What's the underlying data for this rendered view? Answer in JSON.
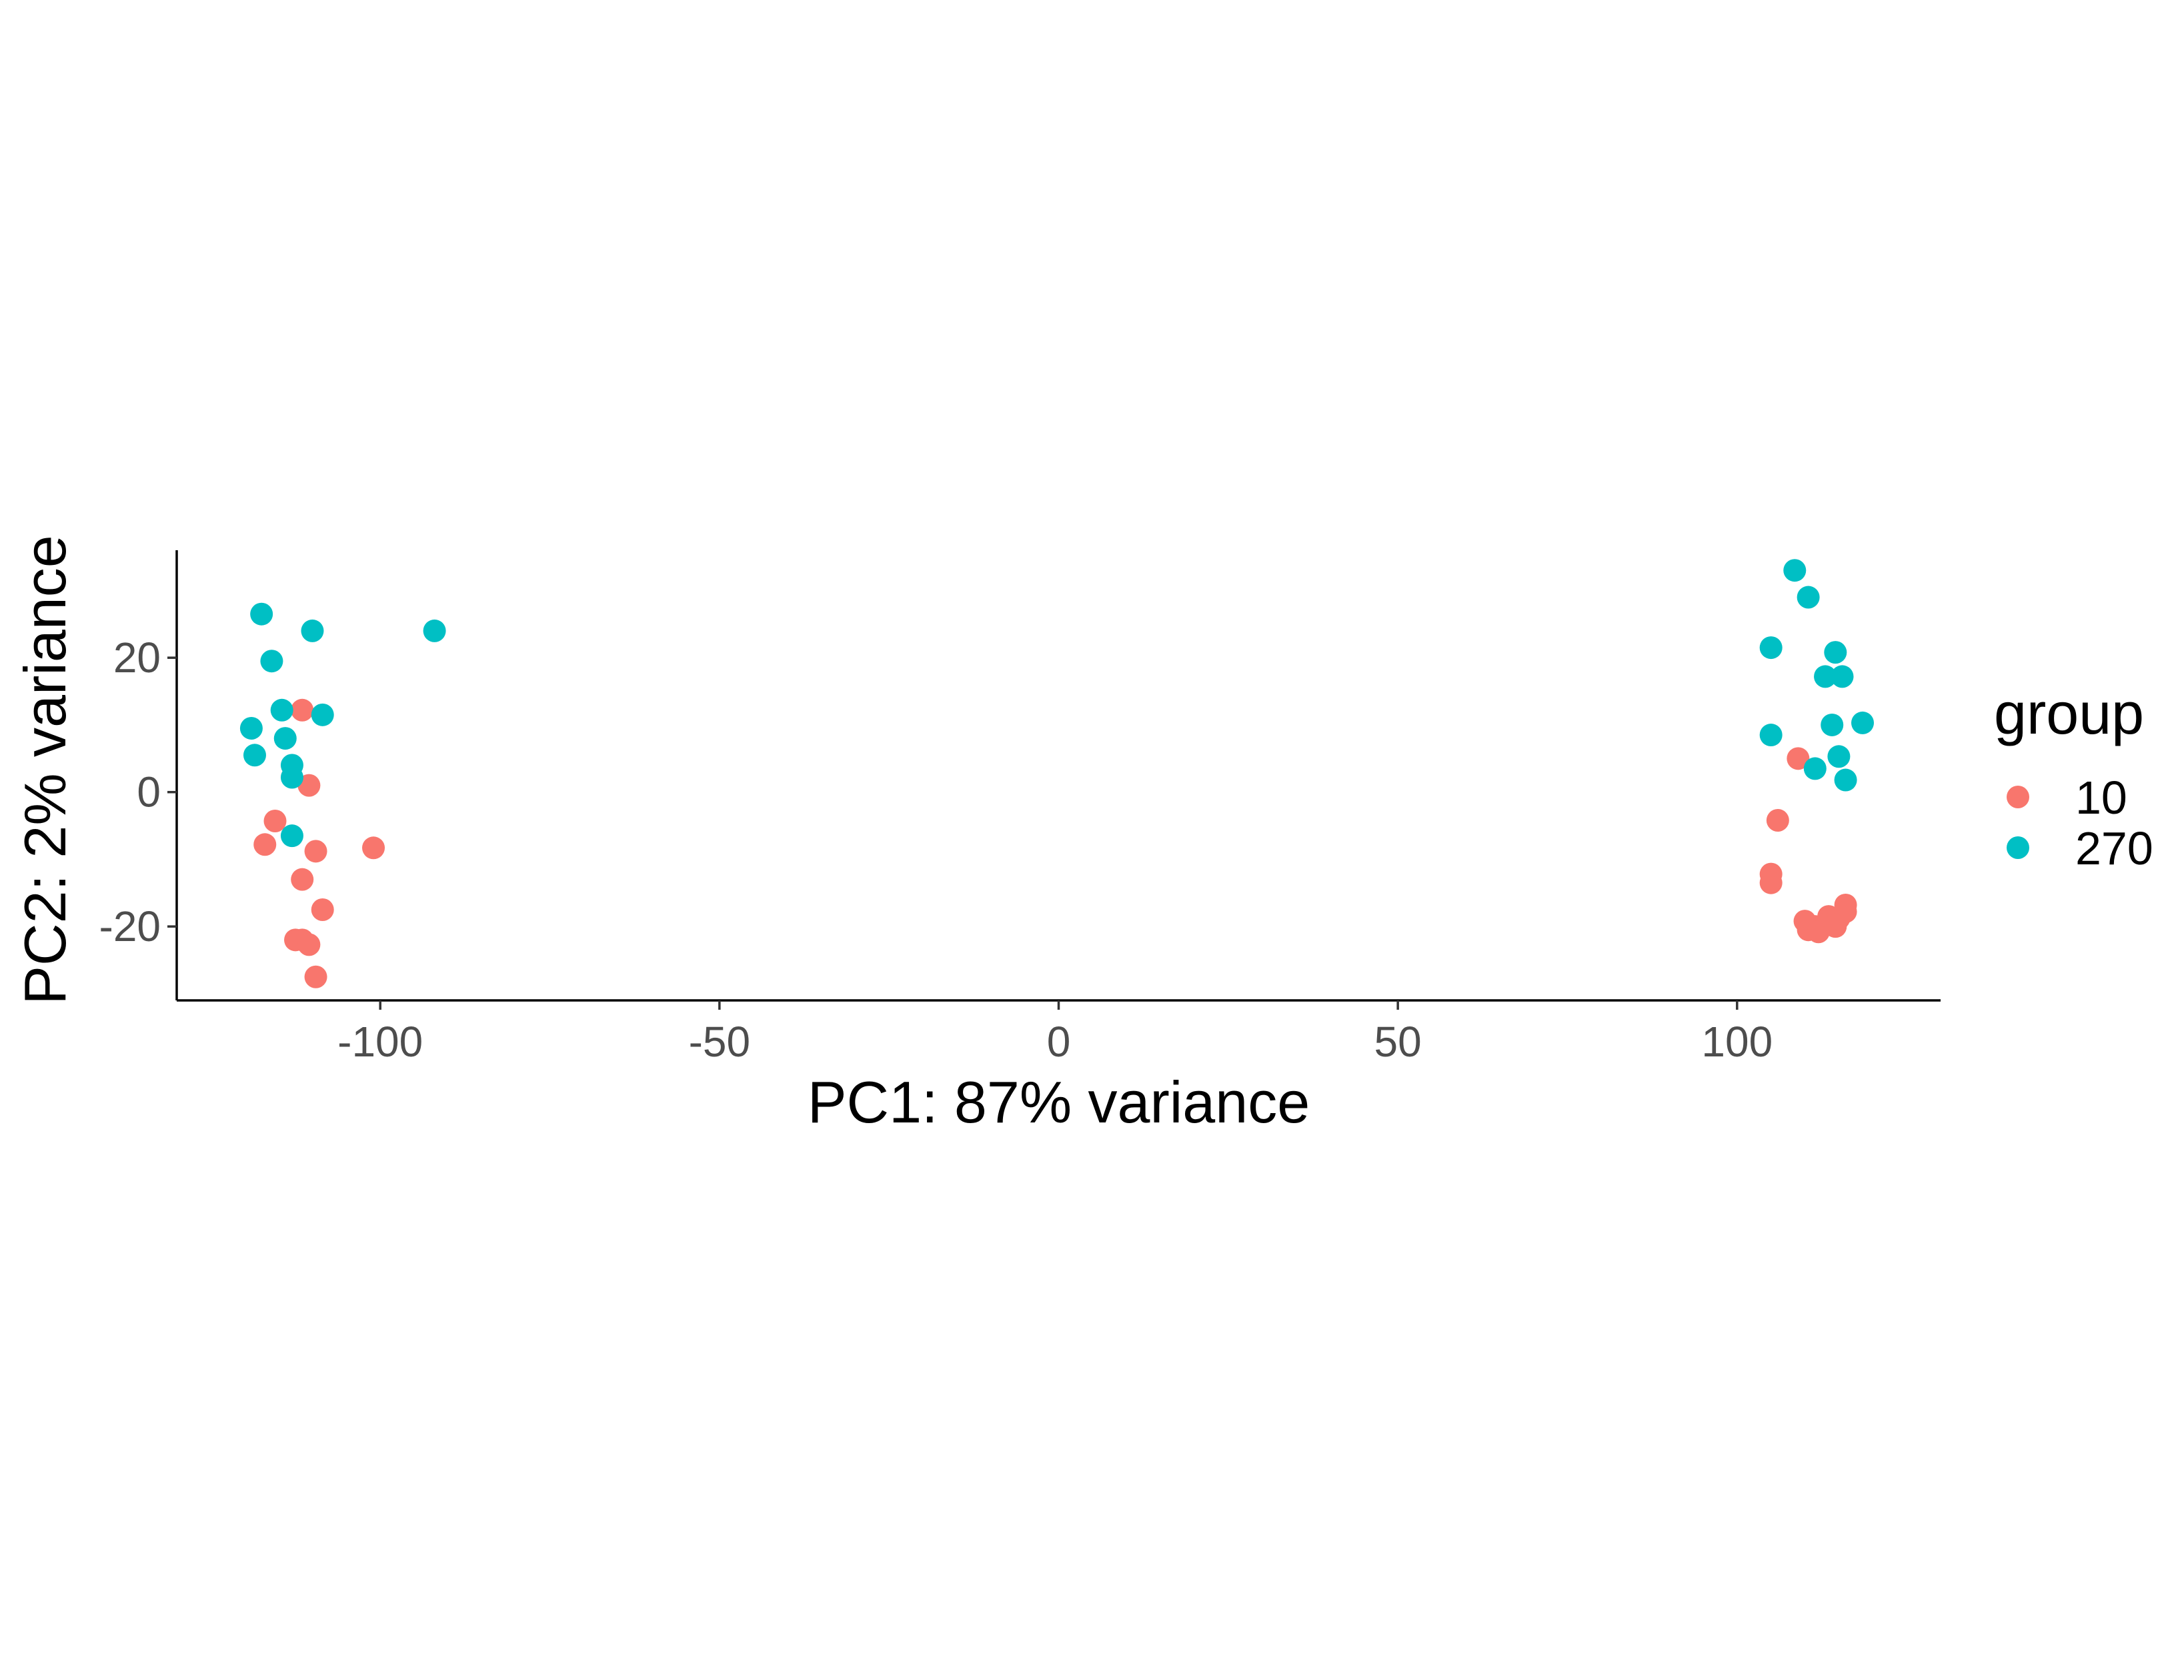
{
  "chart_data": {
    "type": "scatter",
    "xlabel": "PC1: 87% variance",
    "ylabel": "PC2: 2% variance",
    "xlim": [
      -130,
      130
    ],
    "ylim": [
      -31,
      36
    ],
    "grid": false,
    "x_ticks": [
      -100,
      -50,
      0,
      50,
      100
    ],
    "x_tick_labels": [
      "-100",
      "-50",
      "0",
      "50",
      "100"
    ],
    "y_ticks": [
      -20,
      0,
      20
    ],
    "y_tick_labels": [
      "-20",
      "0",
      "20"
    ],
    "legend": {
      "title": "group",
      "placement": "right",
      "entries": [
        {
          "label": "10",
          "color": "#F8766D"
        },
        {
          "label": "270",
          "color": "#00BFC4"
        }
      ]
    },
    "series": [
      {
        "name": "10",
        "color": "#F8766D",
        "points": [
          [
            -111.5,
            12.2
          ],
          [
            -110.5,
            1.0
          ],
          [
            -115.5,
            -4.3
          ],
          [
            -117.0,
            -7.8
          ],
          [
            -109.5,
            -8.8
          ],
          [
            -101.0,
            -8.3
          ],
          [
            -111.5,
            -13.0
          ],
          [
            -108.5,
            -17.5
          ],
          [
            -112.5,
            -22.0
          ],
          [
            -111.5,
            -22.0
          ],
          [
            -110.5,
            -22.7
          ],
          [
            -109.5,
            -27.5
          ],
          [
            109.0,
            5.0
          ],
          [
            106.0,
            -4.2
          ],
          [
            105.0,
            -12.2
          ],
          [
            105.0,
            -13.5
          ],
          [
            110.0,
            -19.2
          ],
          [
            110.5,
            -20.5
          ],
          [
            111.5,
            -20.0
          ],
          [
            112.0,
            -20.8
          ],
          [
            113.5,
            -18.5
          ],
          [
            114.5,
            -20.0
          ],
          [
            115.0,
            -18.8
          ],
          [
            116.0,
            -16.8
          ],
          [
            116.0,
            -17.8
          ]
        ]
      },
      {
        "name": "270",
        "color": "#00BFC4",
        "points": [
          [
            -117.5,
            26.5
          ],
          [
            -116.0,
            19.5
          ],
          [
            -110.0,
            24.0
          ],
          [
            -92.0,
            24.0
          ],
          [
            -114.5,
            12.2
          ],
          [
            -108.5,
            11.5
          ],
          [
            -119.0,
            9.5
          ],
          [
            -114.0,
            8.0
          ],
          [
            -118.5,
            5.5
          ],
          [
            -113.0,
            4.0
          ],
          [
            -113.0,
            2.2
          ],
          [
            -113.0,
            -6.5
          ],
          [
            108.5,
            33.0
          ],
          [
            110.5,
            29.0
          ],
          [
            105.0,
            21.5
          ],
          [
            114.5,
            20.8
          ],
          [
            113.0,
            17.2
          ],
          [
            115.5,
            17.2
          ],
          [
            105.0,
            8.5
          ],
          [
            114.0,
            10.0
          ],
          [
            118.5,
            10.3
          ],
          [
            115.0,
            5.3
          ],
          [
            111.5,
            3.5
          ],
          [
            116.0,
            1.8
          ]
        ]
      }
    ]
  }
}
